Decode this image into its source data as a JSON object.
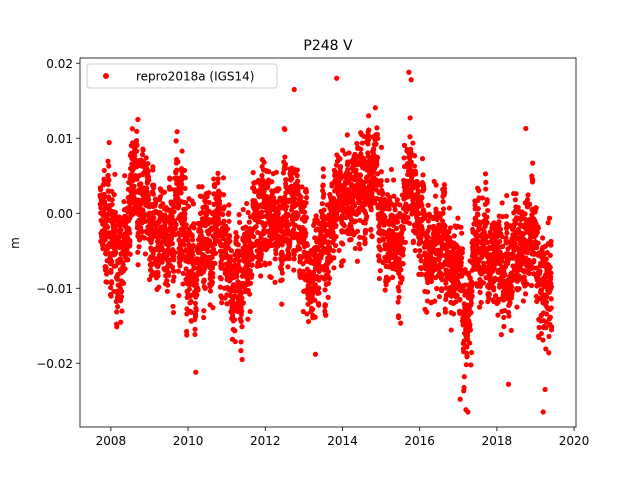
{
  "chart_data": {
    "type": "scatter",
    "title": "P248 V",
    "xlabel": "",
    "ylabel": "m",
    "xlim": [
      2007.2,
      2020.05
    ],
    "ylim": [
      -0.0285,
      0.0207
    ],
    "x_ticks": [
      2008,
      2010,
      2012,
      2014,
      2016,
      2018,
      2020
    ],
    "x_tick_labels": [
      "2008",
      "2010",
      "2012",
      "2014",
      "2016",
      "2018",
      "2020"
    ],
    "y_ticks": [
      -0.02,
      -0.01,
      0.0,
      0.01,
      0.02
    ],
    "y_tick_labels": [
      "−0.02",
      "−0.01",
      "0.00",
      "0.01",
      "0.02"
    ],
    "grid": false,
    "legend_position": "top-left",
    "series": [
      {
        "name": "repro2018a (IGS14)",
        "color": "#ff0000",
        "marker": "circle",
        "x_range": [
          2007.72,
          2019.42
        ],
        "trend": [
          [
            2007.72,
            -0.001
          ],
          [
            2008.0,
            -0.0025
          ],
          [
            2008.3,
            -0.005
          ],
          [
            2008.55,
            0.001
          ],
          [
            2008.8,
            0.003
          ],
          [
            2009.0,
            0.0
          ],
          [
            2009.3,
            -0.002
          ],
          [
            2009.55,
            -0.003
          ],
          [
            2009.8,
            0.001
          ],
          [
            2010.05,
            -0.004
          ],
          [
            2010.2,
            -0.009
          ],
          [
            2010.5,
            -0.004
          ],
          [
            2010.8,
            -0.002
          ],
          [
            2011.0,
            -0.006
          ],
          [
            2011.3,
            -0.01
          ],
          [
            2011.6,
            -0.004
          ],
          [
            2011.9,
            0.0
          ],
          [
            2012.2,
            -0.002
          ],
          [
            2012.45,
            -0.001
          ],
          [
            2012.7,
            0.002
          ],
          [
            2013.0,
            -0.004
          ],
          [
            2013.2,
            -0.008
          ],
          [
            2013.5,
            -0.002
          ],
          [
            2013.8,
            0.0
          ],
          [
            2014.0,
            0.001
          ],
          [
            2014.3,
            0.002
          ],
          [
            2014.6,
            0.004
          ],
          [
            2014.8,
            0.006
          ],
          [
            2015.0,
            0.0
          ],
          [
            2015.2,
            -0.003
          ],
          [
            2015.5,
            -0.004
          ],
          [
            2015.75,
            0.004
          ],
          [
            2016.0,
            0.0
          ],
          [
            2016.3,
            -0.005
          ],
          [
            2016.6,
            -0.003
          ],
          [
            2016.85,
            -0.005
          ],
          [
            2017.0,
            -0.008
          ],
          [
            2017.2,
            -0.012
          ],
          [
            2017.45,
            -0.006
          ],
          [
            2017.7,
            -0.004
          ],
          [
            2017.95,
            -0.005
          ],
          [
            2018.2,
            -0.008
          ],
          [
            2018.45,
            -0.004
          ],
          [
            2018.7,
            -0.004
          ],
          [
            2018.9,
            0.0
          ],
          [
            2019.1,
            -0.008
          ],
          [
            2019.25,
            -0.012
          ],
          [
            2019.42,
            -0.008
          ]
        ],
        "spread": 0.0045,
        "outliers": [
          [
            2013.85,
            0.018
          ],
          [
            2015.72,
            0.0188
          ],
          [
            2015.78,
            0.0178
          ],
          [
            2012.75,
            0.0165
          ],
          [
            2018.75,
            0.0113
          ],
          [
            2008.7,
            0.0125
          ],
          [
            2017.2,
            -0.0262
          ],
          [
            2017.25,
            -0.0265
          ],
          [
            2019.2,
            -0.0265
          ],
          [
            2017.05,
            -0.0248
          ],
          [
            2010.2,
            -0.0212
          ],
          [
            2018.3,
            -0.0228
          ],
          [
            2013.3,
            -0.0188
          ],
          [
            2011.4,
            -0.0195
          ],
          [
            2019.25,
            -0.0235
          ]
        ]
      }
    ]
  }
}
